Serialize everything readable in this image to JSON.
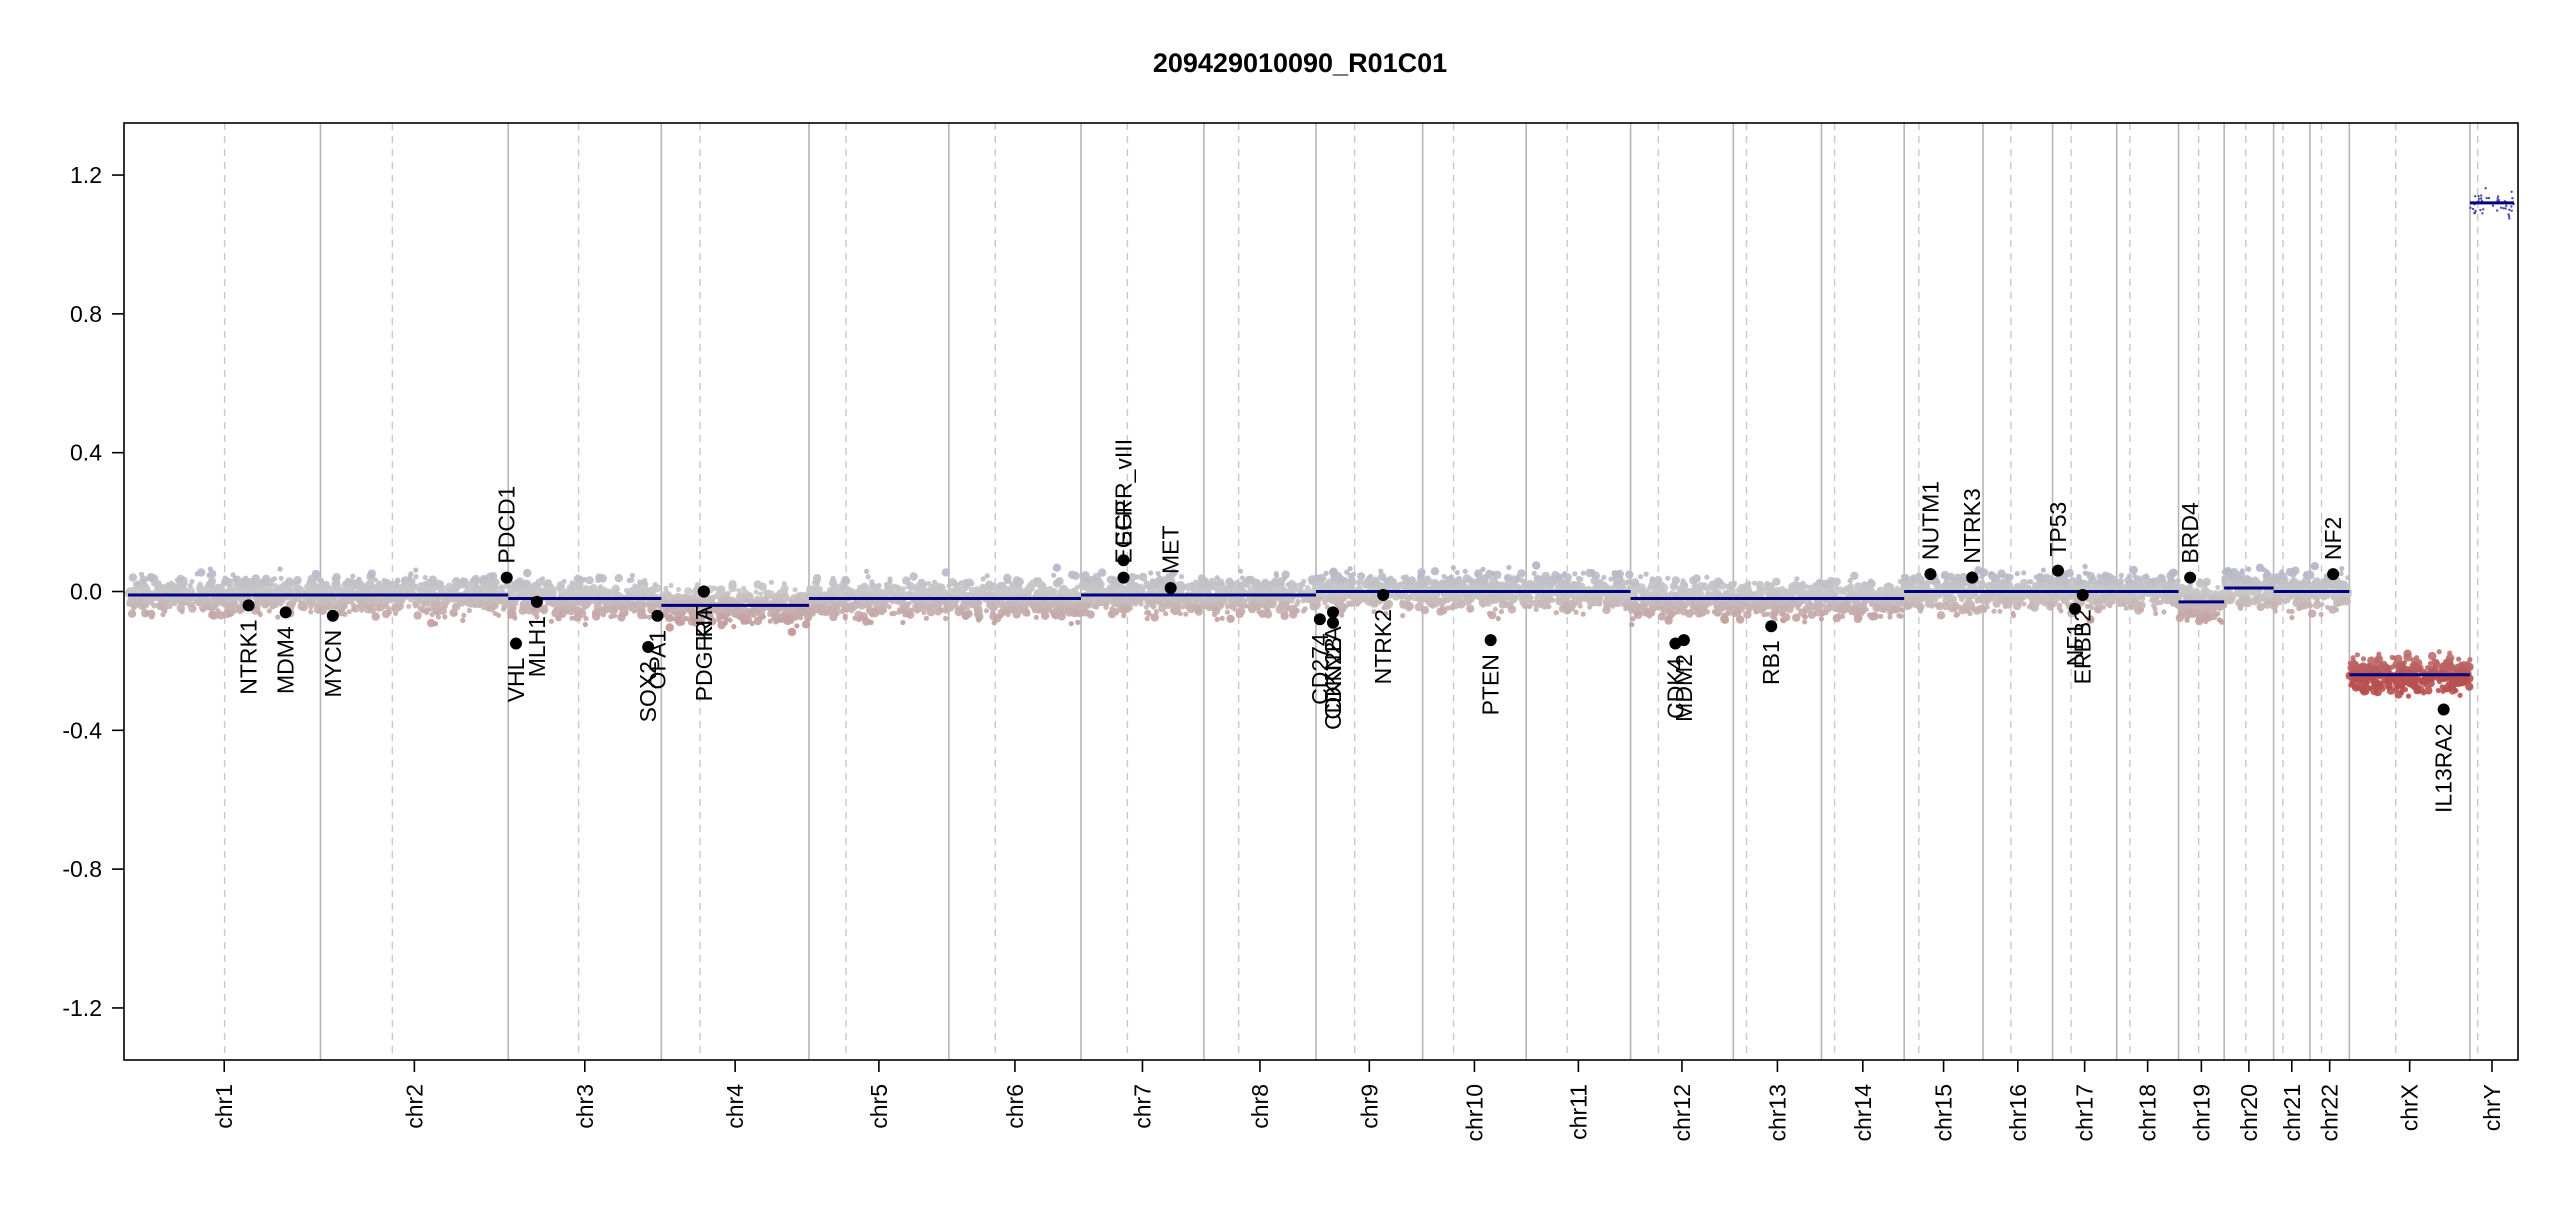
{
  "chart_data": {
    "type": "scatter",
    "title": "209429010090_R01C01",
    "xlabel": "",
    "ylabel": "",
    "ylim": [
      -1.35,
      1.35
    ],
    "yticks": [
      1.2,
      0.8,
      0.4,
      0.0,
      -0.4,
      -0.8,
      -1.2
    ],
    "ytick_labels": [
      "1.2",
      "0.8",
      "0.4",
      "0.0",
      "-0.4",
      "-0.8",
      "-1.2"
    ],
    "grid": false,
    "colors": {
      "high": "#9a9cc4",
      "low": "#b85050",
      "neutral": "#c8c8c8",
      "segment": "#000080",
      "gene": "#000000"
    },
    "chromosomes": [
      {
        "name": "chr1",
        "len": 249,
        "cen": 125
      },
      {
        "name": "chr2",
        "len": 243,
        "cen": 93
      },
      {
        "name": "chr3",
        "len": 198,
        "cen": 91
      },
      {
        "name": "chr4",
        "len": 191,
        "cen": 50
      },
      {
        "name": "chr5",
        "len": 181,
        "cen": 48
      },
      {
        "name": "chr6",
        "len": 171,
        "cen": 60
      },
      {
        "name": "chr7",
        "len": 159,
        "cen": 60
      },
      {
        "name": "chr8",
        "len": 145,
        "cen": 45
      },
      {
        "name": "chr9",
        "len": 138,
        "cen": 50
      },
      {
        "name": "chr10",
        "len": 134,
        "cen": 40
      },
      {
        "name": "chr11",
        "len": 135,
        "cen": 53
      },
      {
        "name": "chr12",
        "len": 133,
        "cen": 36
      },
      {
        "name": "chr13",
        "len": 114,
        "cen": 17
      },
      {
        "name": "chr14",
        "len": 107,
        "cen": 17
      },
      {
        "name": "chr15",
        "len": 102,
        "cen": 19
      },
      {
        "name": "chr16",
        "len": 90,
        "cen": 36
      },
      {
        "name": "chr17",
        "len": 83,
        "cen": 24
      },
      {
        "name": "chr18",
        "len": 80,
        "cen": 17
      },
      {
        "name": "chr19",
        "len": 59,
        "cen": 26
      },
      {
        "name": "chr20",
        "len": 64,
        "cen": 28
      },
      {
        "name": "chr21",
        "len": 47,
        "cen": 12
      },
      {
        "name": "chr22",
        "len": 51,
        "cen": 15
      },
      {
        "name": "chrX",
        "len": 156,
        "cen": 60
      },
      {
        "name": "chrY",
        "len": 57,
        "cen": 10
      }
    ],
    "segments": [
      {
        "chr": "chr1",
        "start": 0,
        "end": 249,
        "value": -0.01
      },
      {
        "chr": "chr2",
        "start": 0,
        "end": 243,
        "value": -0.01
      },
      {
        "chr": "chr3",
        "start": 0,
        "end": 198,
        "value": -0.02
      },
      {
        "chr": "chr4",
        "start": 0,
        "end": 191,
        "value": -0.04
      },
      {
        "chr": "chr5",
        "start": 0,
        "end": 181,
        "value": -0.02
      },
      {
        "chr": "chr6",
        "start": 0,
        "end": 171,
        "value": -0.02
      },
      {
        "chr": "chr7",
        "start": 0,
        "end": 159,
        "value": -0.01
      },
      {
        "chr": "chr8",
        "start": 0,
        "end": 145,
        "value": -0.01
      },
      {
        "chr": "chr9",
        "start": 0,
        "end": 138,
        "value": 0.0
      },
      {
        "chr": "chr10",
        "start": 0,
        "end": 134,
        "value": 0.0
      },
      {
        "chr": "chr11",
        "start": 0,
        "end": 135,
        "value": 0.0
      },
      {
        "chr": "chr12",
        "start": 0,
        "end": 133,
        "value": -0.02
      },
      {
        "chr": "chr13",
        "start": 0,
        "end": 114,
        "value": -0.02
      },
      {
        "chr": "chr14",
        "start": 0,
        "end": 107,
        "value": -0.02
      },
      {
        "chr": "chr15",
        "start": 0,
        "end": 102,
        "value": 0.0
      },
      {
        "chr": "chr16",
        "start": 0,
        "end": 90,
        "value": 0.0
      },
      {
        "chr": "chr17",
        "start": 0,
        "end": 83,
        "value": 0.0
      },
      {
        "chr": "chr18",
        "start": 0,
        "end": 80,
        "value": 0.0
      },
      {
        "chr": "chr19",
        "start": 0,
        "end": 59,
        "value": -0.03
      },
      {
        "chr": "chr20",
        "start": 0,
        "end": 64,
        "value": 0.01
      },
      {
        "chr": "chr21",
        "start": 0,
        "end": 47,
        "value": 0.0
      },
      {
        "chr": "chr22",
        "start": 0,
        "end": 51,
        "value": 0.0
      },
      {
        "chr": "chrX",
        "start": 0,
        "end": 156,
        "value": -0.24
      },
      {
        "chr": "chrY",
        "start": 0,
        "end": 57,
        "value": 1.12
      }
    ],
    "genes": [
      {
        "name": "NTRK1",
        "chr": "chr1",
        "pos": 156,
        "value": -0.04,
        "label": "below"
      },
      {
        "name": "MDM4",
        "chr": "chr1",
        "pos": 204,
        "value": -0.06,
        "label": "below"
      },
      {
        "name": "MYCN",
        "chr": "chr2",
        "pos": 16,
        "value": -0.07,
        "label": "below"
      },
      {
        "name": "PDCD1",
        "chr": "chr2",
        "pos": 241,
        "value": 0.04,
        "label": "above"
      },
      {
        "name": "VHL",
        "chr": "chr3",
        "pos": 10,
        "value": -0.15,
        "label": "below"
      },
      {
        "name": "MLH1",
        "chr": "chr3",
        "pos": 37,
        "value": -0.03,
        "label": "below"
      },
      {
        "name": "SOX2",
        "chr": "chr3",
        "pos": 181,
        "value": -0.16,
        "label": "below"
      },
      {
        "name": "OPA1",
        "chr": "chr3",
        "pos": 193,
        "value": -0.07,
        "label": "below"
      },
      {
        "name": "PDGFRA",
        "chr": "chr4",
        "pos": 55,
        "value": 0.0,
        "label": "below"
      },
      {
        "name": "KIT",
        "chr": "chr4",
        "pos": 55,
        "value": 0.0,
        "label": "below"
      },
      {
        "name": "EGFR",
        "chr": "chr7",
        "pos": 55,
        "value": 0.04,
        "label": "above"
      },
      {
        "name": "EGFR_vIII",
        "chr": "chr7",
        "pos": 55,
        "value": 0.09,
        "label": "above"
      },
      {
        "name": "MET",
        "chr": "chr7",
        "pos": 116,
        "value": 0.01,
        "label": "above"
      },
      {
        "name": "CD274",
        "chr": "chr9",
        "pos": 5,
        "value": -0.08,
        "label": "below"
      },
      {
        "name": "CDKN2A",
        "chr": "chr9",
        "pos": 22,
        "value": -0.06,
        "label": "below"
      },
      {
        "name": "CDKN2B",
        "chr": "chr9",
        "pos": 22,
        "value": -0.09,
        "label": "below"
      },
      {
        "name": "NTRK2",
        "chr": "chr9",
        "pos": 87,
        "value": -0.01,
        "label": "below"
      },
      {
        "name": "PTEN",
        "chr": "chr10",
        "pos": 88,
        "value": -0.14,
        "label": "below"
      },
      {
        "name": "CDK4",
        "chr": "chr12",
        "pos": 58,
        "value": -0.15,
        "label": "below"
      },
      {
        "name": "MDM2",
        "chr": "chr12",
        "pos": 69,
        "value": -0.14,
        "label": "below"
      },
      {
        "name": "RB1",
        "chr": "chr13",
        "pos": 49,
        "value": -0.1,
        "label": "below"
      },
      {
        "name": "NUTM1",
        "chr": "chr15",
        "pos": 34,
        "value": 0.05,
        "label": "above"
      },
      {
        "name": "NTRK3",
        "chr": "chr15",
        "pos": 88,
        "value": 0.04,
        "label": "above"
      },
      {
        "name": "TP53",
        "chr": "chr17",
        "pos": 7,
        "value": 0.06,
        "label": "above"
      },
      {
        "name": "NF1",
        "chr": "chr17",
        "pos": 29,
        "value": -0.05,
        "label": "below"
      },
      {
        "name": "ERBB2",
        "chr": "chr17",
        "pos": 39,
        "value": -0.01,
        "label": "below"
      },
      {
        "name": "BRD4",
        "chr": "chr19",
        "pos": 15,
        "value": 0.04,
        "label": "above"
      },
      {
        "name": "NF2",
        "chr": "chr22",
        "pos": 30,
        "value": 0.05,
        "label": "above"
      },
      {
        "name": "IL13RA2",
        "chr": "chrX",
        "pos": 122,
        "value": -0.34,
        "label": "below"
      }
    ]
  }
}
